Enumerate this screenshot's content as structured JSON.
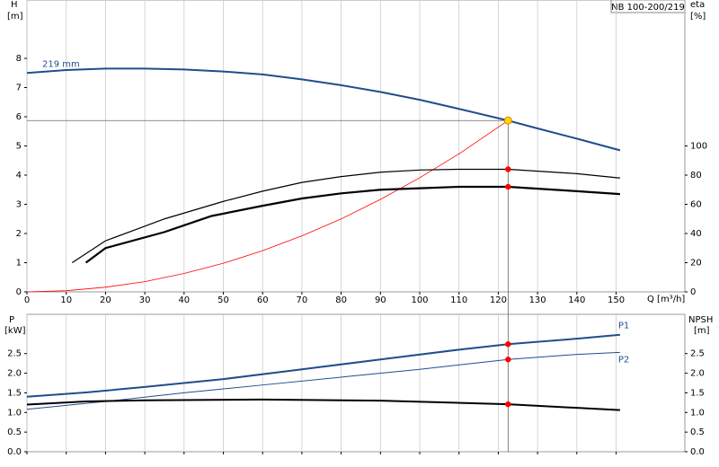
{
  "chart_data": [
    {
      "type": "line",
      "label_box": "NB 100-200/219",
      "y_label": "H",
      "y_unit": "[m]",
      "y2_label": "eta",
      "y2_unit": "[%]",
      "x_label": "Q [m³/h]",
      "xlim": [
        0,
        167.5
      ],
      "xticks": [
        0,
        10,
        20,
        30,
        40,
        50,
        60,
        70,
        80,
        90,
        100,
        110,
        120,
        130,
        140,
        150
      ],
      "ylim": [
        0,
        10
      ],
      "yticks": [
        0,
        1,
        2,
        3,
        4,
        5,
        6,
        7,
        8
      ],
      "y2lim": [
        0,
        200
      ],
      "y2ticks": [
        0,
        20,
        40,
        60,
        80,
        100
      ],
      "operating_q": 122.5,
      "series": [
        {
          "name": "219 mm",
          "color": "#1f4e8c",
          "line_width": 2,
          "marker": "#ffd700",
          "x": [
            0,
            10,
            20,
            30,
            40,
            50,
            60,
            70,
            80,
            90,
            100,
            110,
            122.5,
            130,
            140,
            151
          ],
          "values": [
            7.5,
            7.6,
            7.65,
            7.65,
            7.62,
            7.55,
            7.45,
            7.28,
            7.08,
            6.85,
            6.58,
            6.27,
            5.87,
            5.6,
            5.25,
            4.85
          ]
        },
        {
          "color": "#ff0000",
          "line_width": 0.8,
          "x": [
            0,
            10,
            20,
            30,
            40,
            50,
            60,
            70,
            80,
            90,
            100,
            110,
            122.5
          ],
          "values": [
            0,
            0.04,
            0.16,
            0.35,
            0.63,
            0.98,
            1.41,
            1.92,
            2.5,
            3.17,
            3.91,
            4.73,
            5.87
          ]
        },
        {
          "color": "#000000",
          "line_width": 1.2,
          "marker": "#ff0000",
          "axis": "y2",
          "x": [
            11.5,
            20,
            35,
            50,
            60,
            70,
            80,
            90,
            100,
            110,
            122.5,
            140,
            151
          ],
          "values": [
            20,
            35,
            50,
            62,
            69,
            75,
            79,
            82,
            83.5,
            84,
            84,
            81,
            78
          ]
        },
        {
          "color": "#000000",
          "line_width": 2.2,
          "marker": "#ff0000",
          "axis": "y2",
          "x": [
            15,
            20,
            35,
            47,
            60,
            70,
            80,
            90,
            100,
            110,
            122.5,
            140,
            151
          ],
          "values": [
            20,
            30,
            41,
            52,
            59,
            64,
            67.5,
            70,
            71,
            72,
            72,
            69,
            67
          ]
        }
      ]
    },
    {
      "type": "line",
      "y_label": "P",
      "y_unit": "[kW]",
      "y2_label": "NPSH",
      "y2_unit": "[m]",
      "xlim": [
        0,
        167.5
      ],
      "ylim": [
        0,
        3.5
      ],
      "yticks": [
        {
          "value": 0,
          "label": "0.0"
        },
        {
          "value": 0.5,
          "label": "0.5"
        },
        {
          "value": 1,
          "label": "1.0"
        },
        {
          "value": 1.5,
          "label": "1.5"
        },
        {
          "value": 2,
          "label": "2.0"
        },
        {
          "value": 2.5,
          "label": "2.5"
        }
      ],
      "y2lim": [
        0,
        3.5
      ],
      "y2ticks": [
        {
          "value": 0,
          "label": "0.0"
        },
        {
          "value": 0.5,
          "label": "0.5"
        },
        {
          "value": 1,
          "label": "1.0"
        },
        {
          "value": 1.5,
          "label": "1.5"
        },
        {
          "value": 2,
          "label": "2.0"
        },
        {
          "value": 2.5,
          "label": "2.5"
        }
      ],
      "operating_q": 122.5,
      "series": [
        {
          "name": "P1",
          "color": "#1f4e8c",
          "line_width": 2,
          "marker": "#ff0000",
          "x": [
            0,
            15,
            30,
            50,
            70,
            90,
            110,
            122.5,
            140,
            151
          ],
          "values": [
            1.4,
            1.51,
            1.65,
            1.85,
            2.1,
            2.35,
            2.6,
            2.74,
            2.88,
            2.98
          ]
        },
        {
          "name": "P2",
          "color": "#1f4e8c",
          "line_width": 1,
          "marker": "#ff0000",
          "x": [
            0,
            20,
            40,
            60,
            80,
            100,
            122.5,
            140,
            151
          ],
          "values": [
            1.08,
            1.28,
            1.5,
            1.7,
            1.9,
            2.1,
            2.35,
            2.48,
            2.53
          ]
        },
        {
          "color": "#000000",
          "line_width": 2,
          "marker": "#ff0000",
          "axis": "y2",
          "x": [
            0,
            15,
            30,
            60,
            90,
            122.5,
            151
          ],
          "values": [
            1.2,
            1.28,
            1.31,
            1.33,
            1.3,
            1.21,
            1.06
          ]
        }
      ]
    }
  ]
}
